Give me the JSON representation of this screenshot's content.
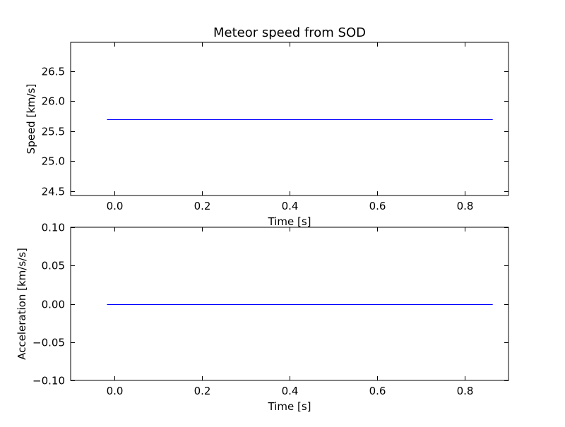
{
  "chart_data": [
    {
      "type": "line",
      "title": "Meteor speed from  SOD",
      "xlabel": "Time [s]",
      "ylabel": "Speed [km/s]",
      "xlim": [
        -0.1,
        0.9
      ],
      "ylim": [
        24.43,
        26.98
      ],
      "x_ticks": [
        0.0,
        0.2,
        0.4,
        0.6,
        0.8
      ],
      "x_tick_labels": [
        "0.0",
        "0.2",
        "0.4",
        "0.6",
        "0.8"
      ],
      "y_ticks": [
        24.5,
        25.0,
        25.5,
        26.0,
        26.5
      ],
      "y_tick_labels": [
        "24.5",
        "25.0",
        "25.5",
        "26.0",
        "26.5"
      ],
      "grid": false,
      "series": [
        {
          "color": "#0000ff",
          "x": [
            -0.017,
            0.864
          ],
          "y": [
            25.7,
            25.7
          ]
        }
      ]
    },
    {
      "type": "line",
      "title": "",
      "xlabel": "Time [s]",
      "ylabel": "Acceleration [km/s/s]",
      "xlim": [
        -0.1,
        0.9
      ],
      "ylim": [
        -0.1,
        0.1
      ],
      "x_ticks": [
        0.0,
        0.2,
        0.4,
        0.6,
        0.8
      ],
      "x_tick_labels": [
        "0.0",
        "0.2",
        "0.4",
        "0.6",
        "0.8"
      ],
      "y_ticks": [
        -0.1,
        -0.05,
        0.0,
        0.05,
        0.1
      ],
      "y_tick_labels": [
        "−0.10",
        "−0.05",
        "0.00",
        "0.05",
        "0.10"
      ],
      "grid": false,
      "series": [
        {
          "color": "#0000ff",
          "x": [
            -0.017,
            0.864
          ],
          "y": [
            0.0,
            0.0
          ]
        }
      ]
    }
  ]
}
